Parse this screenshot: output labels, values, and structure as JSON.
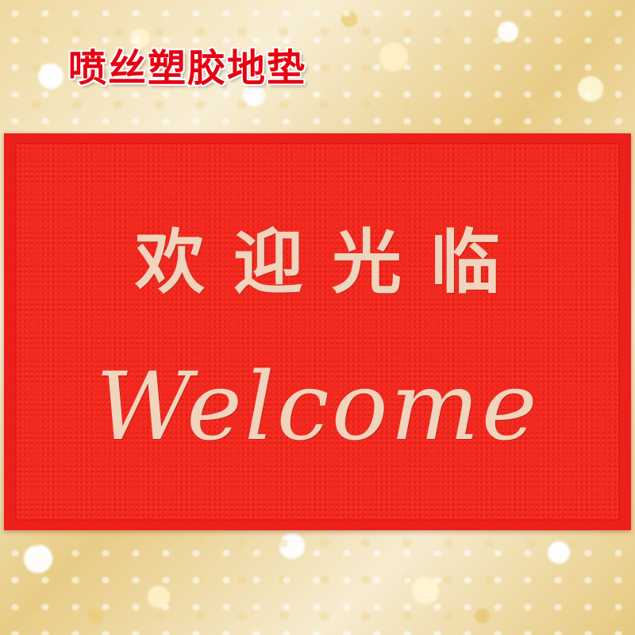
{
  "heading": "喷丝塑胶地垫",
  "mat": {
    "chinese_text": "欢迎光临",
    "english_text": "Welcome"
  },
  "colors": {
    "heading_text": "#e60012",
    "mat_red": "#f2271e",
    "lettering": "#f1d4bd"
  }
}
